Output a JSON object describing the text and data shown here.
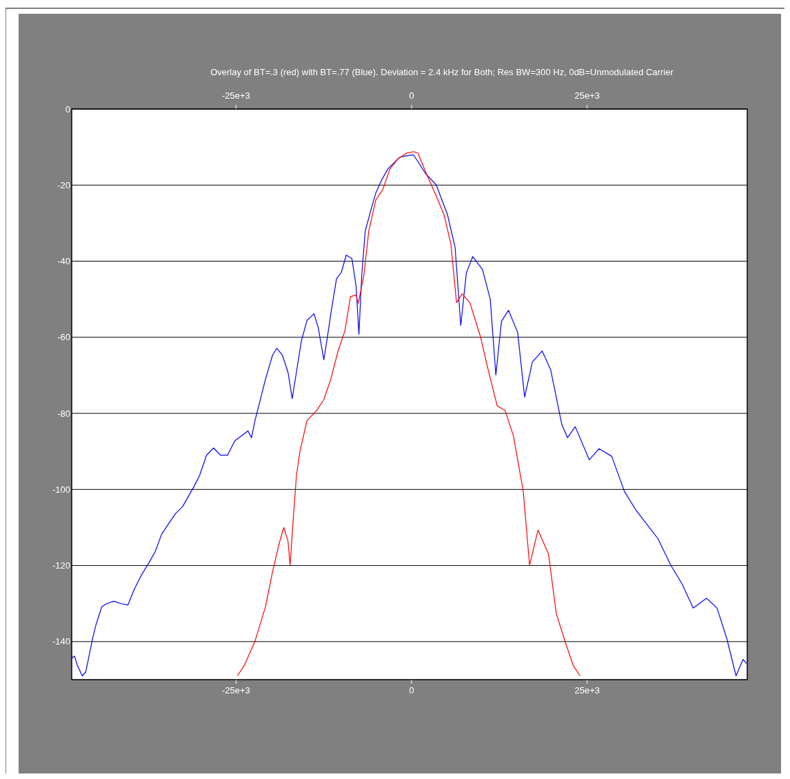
{
  "chart_data": {
    "type": "line",
    "title": "Overlay of BT=.3 (red) with BT=.77 (Blue).  Deviation = 2.4 kHz for Both;  Res BW=300 Hz, 0dB=Unmodulated Carrier",
    "xlim": [
      -48400,
      47800
    ],
    "xticks": [
      {
        "value": -25000,
        "label": "-25e+3"
      },
      0,
      {
        "value": 25000,
        "label": "25e+3"
      }
    ],
    "x2lim": [
      -48400,
      47800
    ],
    "x2ticks": [
      {
        "value": -25000,
        "label": "-25e+3"
      },
      0,
      {
        "value": 25000,
        "label": "25e+3"
      }
    ],
    "ylim": [
      -150,
      0
    ],
    "yticks": [
      0,
      -20,
      -40,
      -60,
      -80,
      -100,
      -120,
      -140
    ],
    "grid": "y",
    "marker": "none",
    "line_style": "solid",
    "series": [
      {
        "color": "#0000ff",
        "x": [
          -48400,
          -48000,
          -47600,
          -46900,
          -46400,
          -45900,
          -45400,
          -44900,
          -44100,
          -43400,
          -42400,
          -41400,
          -40400,
          -39500,
          -38500,
          -37500,
          -36500,
          -35600,
          -34600,
          -33600,
          -32600,
          -31100,
          -30200,
          -29200,
          -28200,
          -27200,
          -26200,
          -25200,
          -24200,
          -23300,
          -22800,
          -22300,
          -21800,
          -20800,
          -19800,
          -19200,
          -18400,
          -17600,
          -17000,
          -16400,
          -15700,
          -14900,
          -13900,
          -13300,
          -12500,
          -12000,
          -11500,
          -10700,
          -10000,
          -9300,
          -8500,
          -7900,
          -7500,
          -7100,
          -6600,
          -5800,
          -5100,
          -4300,
          -3400,
          -2700,
          -1700,
          -700,
          0,
          300,
          2000,
          3500,
          5100,
          6200,
          7000,
          7800,
          8700,
          10100,
          11200,
          12000,
          12800,
          13800,
          15100,
          16100,
          17200,
          18600,
          19800,
          21400,
          22200,
          23300,
          25300,
          26700,
          28500,
          30300,
          31900,
          35100,
          36900,
          38500,
          40100,
          42000,
          43500,
          44900,
          46200,
          47200,
          47700
        ],
        "values": [
          -144.4,
          -143.8,
          -146.2,
          -149,
          -148,
          -143.5,
          -139,
          -135.3,
          -130.8,
          -130,
          -129.4,
          -130,
          -130.4,
          -126.3,
          -122.6,
          -119.6,
          -116.3,
          -111.8,
          -109,
          -106.3,
          -104.5,
          -99.6,
          -96.4,
          -91,
          -89.1,
          -91,
          -91,
          -87.3,
          -85.9,
          -84.6,
          -86.4,
          -81.9,
          -78.3,
          -71,
          -64.7,
          -62.9,
          -64.7,
          -69.2,
          -76.1,
          -69.2,
          -61,
          -55.6,
          -53.8,
          -57.4,
          -65.9,
          -60.1,
          -53.8,
          -44.7,
          -42.9,
          -38.4,
          -39.3,
          -46.6,
          -59.2,
          -43.8,
          -32.1,
          -26.6,
          -22.1,
          -18.8,
          -15.8,
          -14.5,
          -12.7,
          -12.3,
          -12.1,
          -12.1,
          -17,
          -19.9,
          -27.7,
          -36.4,
          -56.9,
          -43.1,
          -38.8,
          -42.2,
          -50,
          -69.9,
          -55.8,
          -52.9,
          -58.7,
          -75.7,
          -66.5,
          -63.6,
          -68.5,
          -83,
          -86.4,
          -83.5,
          -92.2,
          -89.3,
          -91.3,
          -100.5,
          -105.3,
          -113,
          -119.9,
          -124.8,
          -131.2,
          -128.6,
          -131.2,
          -139.3,
          -149,
          -144.7,
          -145.7
        ]
      },
      {
        "color": "#ff0000",
        "x": [
          -24800,
          -23800,
          -22300,
          -20800,
          -19800,
          -18900,
          -18200,
          -17600,
          -17300,
          -16900,
          -16400,
          -15900,
          -14900,
          -13500,
          -12500,
          -11500,
          -10500,
          -9500,
          -8700,
          -7900,
          -7600,
          -6800,
          -6100,
          -5100,
          -4100,
          -3100,
          -1900,
          -700,
          300,
          900,
          2200,
          3500,
          4600,
          5600,
          6400,
          7200,
          8300,
          9800,
          10900,
          12200,
          13300,
          14500,
          15900,
          16800,
          18000,
          19500,
          20600,
          21900,
          23000,
          24000
        ],
        "values": [
          -149,
          -146.2,
          -139.9,
          -130.8,
          -121.7,
          -114.5,
          -110,
          -113.6,
          -119.9,
          -109.1,
          -96.4,
          -90,
          -81.9,
          -79.2,
          -76.4,
          -71,
          -63.8,
          -58.3,
          -49.3,
          -48.9,
          -51.1,
          -43.8,
          -32.1,
          -23.9,
          -21.2,
          -15.8,
          -13,
          -11.6,
          -11.2,
          -11.6,
          -17.4,
          -22.8,
          -27.7,
          -35.5,
          -50.9,
          -48.6,
          -50.9,
          -59.8,
          -68.5,
          -78.1,
          -79.2,
          -85.9,
          -100.5,
          -119.9,
          -110.7,
          -117,
          -132.6,
          -140.2,
          -146.2,
          -149
        ]
      }
    ]
  }
}
